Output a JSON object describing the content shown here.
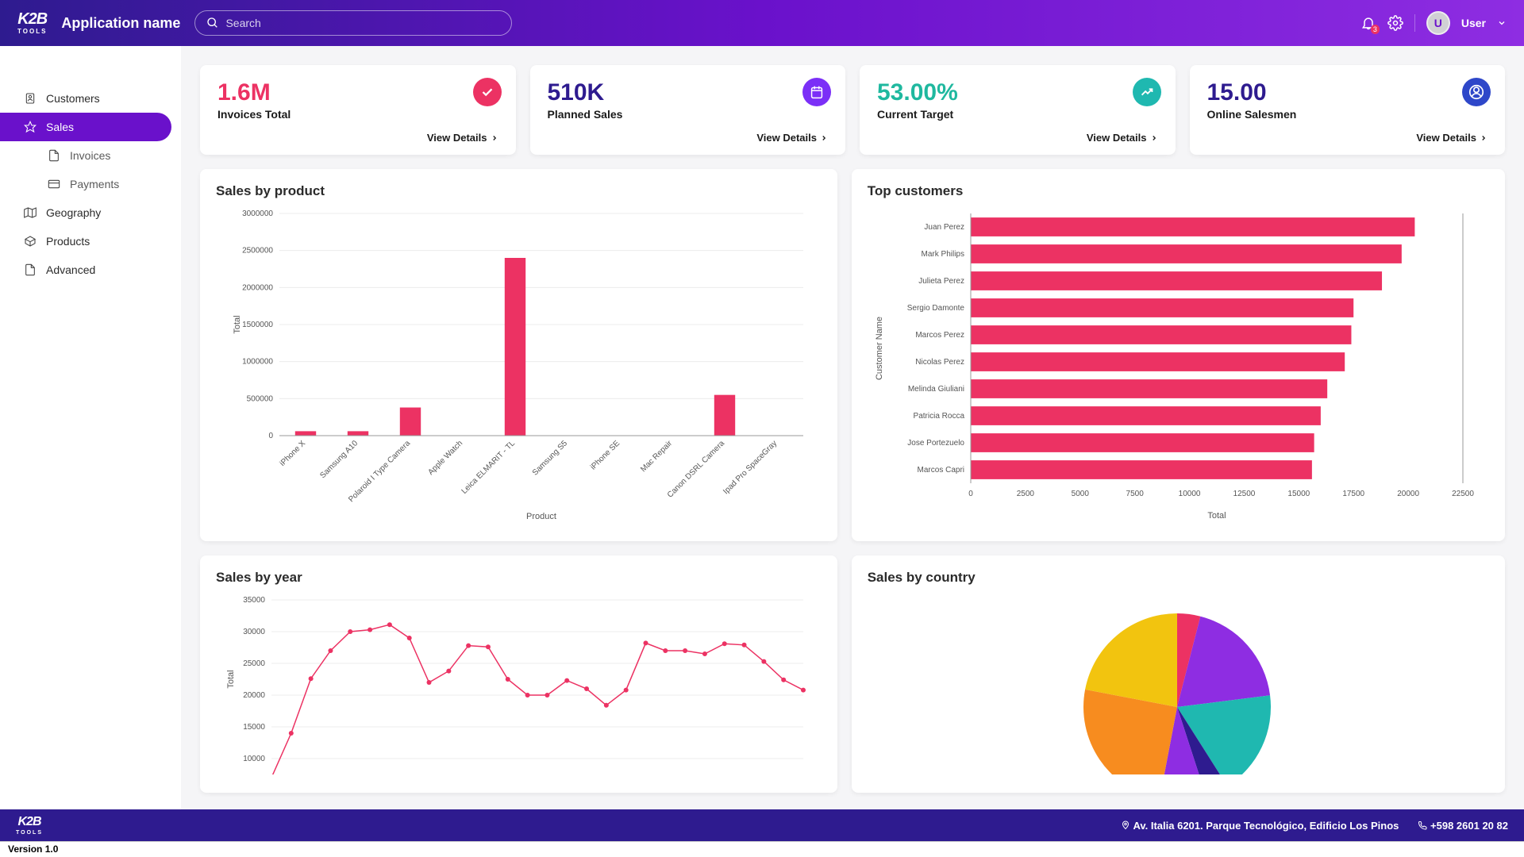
{
  "header": {
    "logo_top": "K2B",
    "logo_sub": "TOOLS",
    "app_name": "Application name",
    "search_placeholder": "Search",
    "notification_badge": "3",
    "user_initial": "U",
    "user_name": "User"
  },
  "sidebar": {
    "items": [
      {
        "label": "Customers",
        "icon": "user"
      },
      {
        "label": "Sales",
        "icon": "star",
        "active": true
      },
      {
        "label": "Invoices",
        "icon": "doc",
        "sub": true
      },
      {
        "label": "Payments",
        "icon": "card",
        "sub": true
      },
      {
        "label": "Geography",
        "icon": "map"
      },
      {
        "label": "Products",
        "icon": "box"
      },
      {
        "label": "Advanced",
        "icon": "doc"
      }
    ]
  },
  "kpi": [
    {
      "value": "1.6M",
      "label": "Invoices Total",
      "link": "View Details",
      "color": "#ec3263",
      "icon_bg": "#ec3263",
      "icon": "check"
    },
    {
      "value": "510K",
      "label": "Planned Sales",
      "link": "View Details",
      "color": "#2e1b8f",
      "icon_bg": "#7b2ff7",
      "icon": "calendar"
    },
    {
      "value": "53.00%",
      "label": "Current Target",
      "link": "View Details",
      "color": "#1fb89f",
      "icon_bg": "#1fb8b0",
      "icon": "trend"
    },
    {
      "value": "15.00",
      "label": "Online Salesmen",
      "link": "View Details",
      "color": "#2e1b8f",
      "icon_bg": "#2e47c9",
      "icon": "person"
    }
  ],
  "sales_by_product": {
    "title": "Sales by product",
    "type": "bar",
    "categories": [
      "iPhone X",
      "Samsung A10",
      "Polaroid I Type Camera",
      "Apple Watch",
      "Leica ELMARIT - TL",
      "Samsung S5",
      "iPhone SE",
      "Mac Repair",
      "Canon DSRL Camera",
      "Ipad Pro SpaceGray"
    ],
    "values": [
      60000,
      60000,
      380000,
      0,
      2400000,
      0,
      0,
      0,
      550000,
      0
    ],
    "bar_color": "#ec3263",
    "ylabel": "Total",
    "xlabel": "Product",
    "ylim": [
      0,
      3000000
    ],
    "ytick_step": 500000,
    "background": "#ffffff",
    "grid_color": "#ececec",
    "label_fontsize": 10,
    "axis_fontsize": 11
  },
  "top_customers": {
    "title": "Top customers",
    "type": "bar-horizontal",
    "categories": [
      "Juan Perez",
      "Mark Philips",
      "Julieta Perez",
      "Sergio Damonte",
      "Marcos Perez",
      "Nicolas Perez",
      "Melinda Giuliani",
      "Patricia Rocca",
      "Jose Portezuelo",
      "Marcos Capri"
    ],
    "values": [
      20300,
      19700,
      18800,
      17500,
      17400,
      17100,
      16300,
      16000,
      15700,
      15600
    ],
    "bar_color": "#ec3263",
    "xlabel": "Total",
    "ylabel": "Customer Name",
    "xlim": [
      0,
      22500
    ],
    "xtick_step": 2500,
    "background": "#ffffff",
    "label_fontsize": 10,
    "axis_fontsize": 11
  },
  "sales_by_year": {
    "title": "Sales by year",
    "type": "line",
    "values": [
      7000,
      14000,
      22600,
      27000,
      30000,
      30300,
      31100,
      29000,
      22000,
      23800,
      27800,
      27600,
      22500,
      20000,
      20000,
      22300,
      21000,
      18400,
      20800,
      28200,
      27000,
      27000,
      26500,
      28100,
      27900,
      25300,
      22400,
      20800
    ],
    "line_color": "#ec3263",
    "marker_color": "#ec3263",
    "ylabel": "Total",
    "ylim": [
      10000,
      35000
    ],
    "ytick_step": 5000,
    "grid_color": "#ececec",
    "label_fontsize": 10,
    "axis_fontsize": 11,
    "line_width": 1.5,
    "marker_size": 3
  },
  "sales_by_country": {
    "title": "Sales by country",
    "type": "pie",
    "slices": [
      {
        "value": 4,
        "color": "#ec3263"
      },
      {
        "value": 19,
        "color": "#8e2de2"
      },
      {
        "value": 18,
        "color": "#1fb8b0"
      },
      {
        "value": 4,
        "color": "#2e1b8f"
      },
      {
        "value": 8,
        "color": "#8e2de2"
      },
      {
        "value": 25,
        "color": "#f78c1f"
      },
      {
        "value": 22,
        "color": "#f2c40f"
      }
    ]
  },
  "footer": {
    "address": "Av. Italia 6201. Parque Tecnológico, Edificio Los Pinos",
    "phone": "+598 2601 20 82",
    "version": "Version 1.0"
  }
}
